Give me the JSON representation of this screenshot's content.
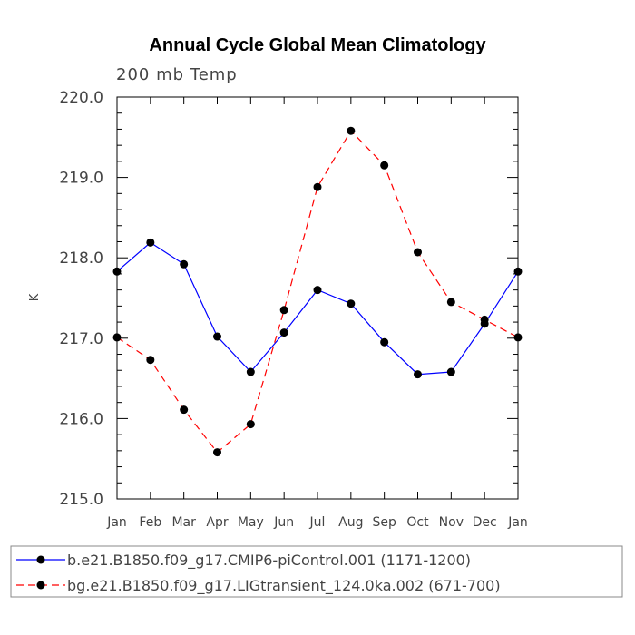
{
  "chart_data": {
    "type": "line",
    "title": "Annual Cycle Global Mean Climatology",
    "subtitle": "200 mb Temp",
    "xlabel": "",
    "ylabel": "K",
    "categories": [
      "Jan",
      "Feb",
      "Mar",
      "Apr",
      "May",
      "Jun",
      "Jul",
      "Aug",
      "Sep",
      "Oct",
      "Nov",
      "Dec",
      "Jan"
    ],
    "ylim": [
      215.0,
      220.0
    ],
    "yticks": [
      "215.0",
      "216.0",
      "217.0",
      "218.0",
      "219.0",
      "220.0"
    ],
    "grid": false,
    "legend_position": "bottom",
    "series": [
      {
        "name": "b.e21.B1850.f09_g17.CMIP6-piControl.001 (1171-1200)",
        "color": "#0000ff",
        "dash": "solid",
        "values": [
          217.83,
          218.19,
          217.92,
          217.02,
          216.58,
          217.07,
          217.6,
          217.43,
          216.95,
          216.55,
          216.58,
          217.18,
          217.83
        ]
      },
      {
        "name": "bg.e21.B1850.f09_g17.LIGtransient_124.0ka.002 (671-700)",
        "color": "#ff0000",
        "dash": "dashed",
        "values": [
          217.01,
          216.73,
          216.11,
          215.58,
          215.93,
          217.35,
          218.88,
          219.58,
          219.15,
          218.07,
          217.45,
          217.23,
          217.01
        ]
      }
    ]
  }
}
